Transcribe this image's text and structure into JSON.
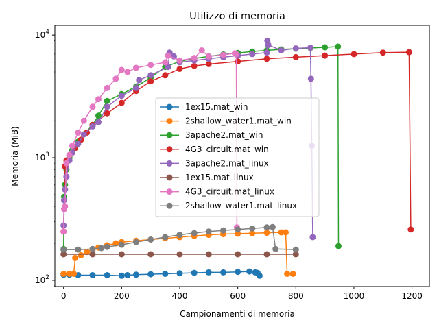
{
  "chart_data": {
    "type": "line",
    "title": "Utilizzo di memoria",
    "xlabel": "Campionamenti di memoria",
    "ylabel": "Memoria (MiB)",
    "xlim": [
      -30,
      1260
    ],
    "ylim": [
      89,
      12000
    ],
    "yscale": "log",
    "grid": false,
    "legend_position": "center-right",
    "x_ticks": [
      0,
      200,
      400,
      600,
      800,
      1000,
      1200
    ],
    "x_tick_labels": [
      "0",
      "200",
      "400",
      "600",
      "800",
      "1000",
      "1200"
    ],
    "y_ticks": [
      100,
      1000,
      10000
    ],
    "y_tick_labels": [
      "10^2",
      "10^3",
      "10^4"
    ],
    "series": [
      {
        "name": "1ex15.mat_win",
        "color": "#1f77b4",
        "x": [
          0,
          20,
          50,
          100,
          150,
          200,
          220,
          250,
          300,
          350,
          400,
          450,
          500,
          550,
          600,
          640,
          660,
          668,
          675
        ],
        "y": [
          111,
          111,
          110,
          110,
          110,
          109,
          110,
          111,
          112,
          113,
          114,
          115,
          116,
          116,
          117,
          118,
          116,
          115,
          109
        ]
      },
      {
        "name": "2shallow_water1.mat_win",
        "color": "#ff7f0e",
        "x": [
          0,
          20,
          35,
          40,
          60,
          80,
          100,
          120,
          150,
          180,
          200,
          250,
          300,
          350,
          400,
          450,
          500,
          550,
          600,
          650,
          700,
          750,
          765,
          770,
          790
        ],
        "y": [
          113,
          113,
          113,
          152,
          160,
          170,
          178,
          185,
          193,
          200,
          205,
          210,
          215,
          220,
          225,
          230,
          235,
          238,
          240,
          242,
          244,
          246,
          246,
          113,
          113
        ]
      },
      {
        "name": "3apache2.mat_win",
        "color": "#2ca02c",
        "x": [
          0,
          2,
          5,
          10,
          20,
          30,
          50,
          70,
          100,
          120,
          150,
          200,
          250,
          300,
          350,
          400,
          450,
          500,
          550,
          600,
          650,
          700,
          750,
          800,
          850,
          900,
          945,
          947
        ],
        "y": [
          180,
          480,
          600,
          800,
          1000,
          1150,
          1350,
          1550,
          1850,
          2200,
          2900,
          3300,
          3800,
          4500,
          5500,
          6100,
          6450,
          6700,
          6950,
          7150,
          7350,
          7500,
          7650,
          7750,
          7850,
          7950,
          8050,
          190
        ]
      },
      {
        "name": "4G3_circuit.mat_win",
        "color": "#d62728",
        "x": [
          0,
          5,
          10,
          20,
          40,
          60,
          80,
          100,
          150,
          200,
          250,
          300,
          350,
          400,
          450,
          500,
          600,
          700,
          800,
          900,
          1000,
          1100,
          1190,
          1196
        ],
        "y": [
          250,
          850,
          950,
          1050,
          1200,
          1400,
          1600,
          1850,
          2300,
          2800,
          3500,
          4200,
          4700,
          5300,
          5600,
          5800,
          6100,
          6400,
          6600,
          6800,
          7000,
          7200,
          7250,
          260
        ]
      },
      {
        "name": "3apache2.mat_linux",
        "color": "#9467bd",
        "x": [
          0,
          2,
          5,
          10,
          20,
          30,
          50,
          70,
          100,
          120,
          150,
          200,
          250,
          260,
          300,
          360,
          365,
          380,
          400,
          450,
          500,
          550,
          600,
          650,
          700,
          702,
          705,
          750,
          800,
          850,
          852,
          855,
          858
        ],
        "y": [
          280,
          450,
          550,
          700,
          950,
          1100,
          1300,
          1550,
          1800,
          1950,
          2600,
          3200,
          3700,
          4300,
          4700,
          5500,
          7200,
          6700,
          6000,
          6200,
          6400,
          6600,
          6800,
          7000,
          7200,
          9000,
          8300,
          7500,
          7800,
          7900,
          4400,
          1250,
          225
        ]
      },
      {
        "name": "1ex15.mat_linux",
        "color": "#8c564b",
        "x": [
          0,
          100,
          200,
          300,
          400,
          500,
          600,
          700,
          800
        ],
        "y": [
          163,
          163,
          163,
          163,
          163,
          163,
          163,
          163,
          163
        ]
      },
      {
        "name": "4G3_circuit.mat_linux",
        "color": "#e377c2",
        "x": [
          0,
          2,
          5,
          10,
          20,
          30,
          50,
          70,
          100,
          120,
          150,
          180,
          200,
          220,
          250,
          300,
          350,
          360,
          400,
          450,
          476,
          500,
          550,
          590,
          595,
          597
        ],
        "y": [
          250,
          380,
          400,
          900,
          1050,
          1250,
          1600,
          2000,
          2600,
          3000,
          3700,
          4400,
          5200,
          5000,
          5400,
          5700,
          6000,
          6800,
          6200,
          6500,
          7500,
          6700,
          6900,
          7100,
          7000,
          270
        ]
      },
      {
        "name": "2shallow_water1.mat_linux",
        "color": "#7f7f7f",
        "x": [
          0,
          50,
          100,
          130,
          150,
          200,
          250,
          300,
          350,
          400,
          450,
          500,
          550,
          600,
          650,
          700,
          720,
          730,
          800
        ],
        "y": [
          178,
          178,
          180,
          183,
          187,
          195,
          205,
          215,
          225,
          235,
          243,
          250,
          255,
          260,
          265,
          270,
          272,
          180,
          178
        ]
      }
    ]
  }
}
